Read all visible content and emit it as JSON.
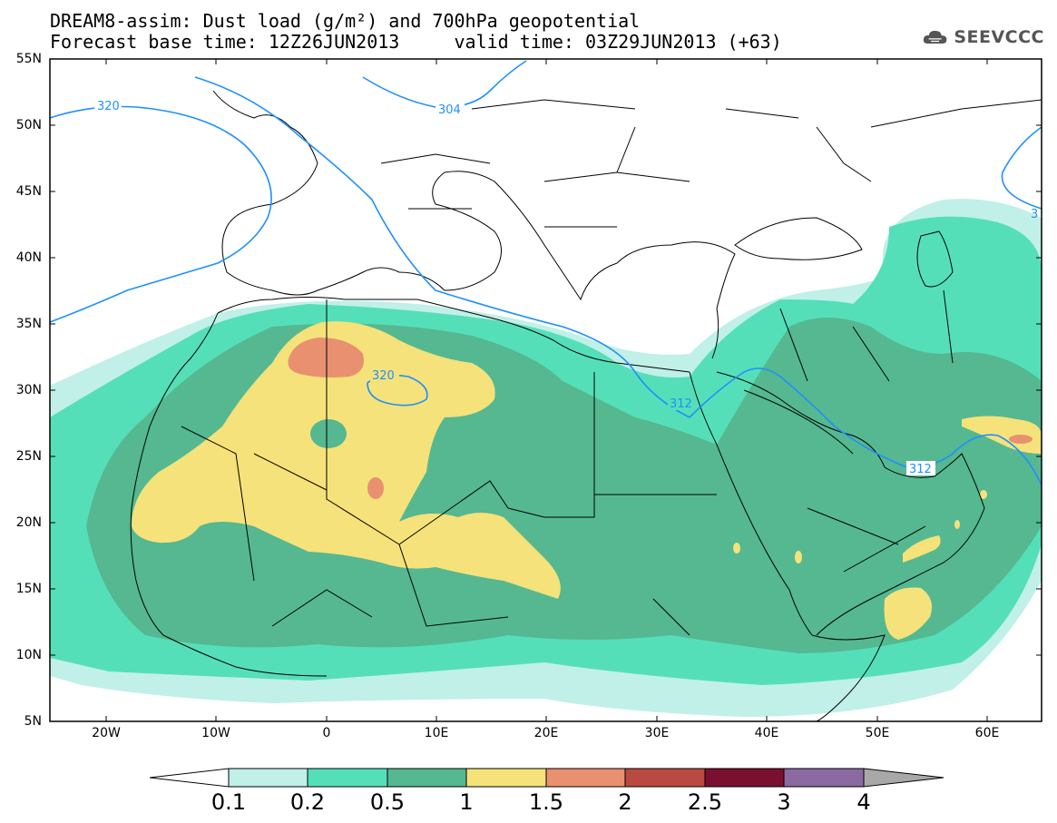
{
  "title_line1": "DREAM8-assim: Dust load (g/m²) and 700hPa geopotential",
  "title_line2": "Forecast base time: 12Z26JUN2013     valid time: 03Z29JUN2013 (+63)",
  "logo_text": "SEEVCCC",
  "lat_labels": [
    "55N",
    "50N",
    "45N",
    "40N",
    "35N",
    "30N",
    "25N",
    "20N",
    "15N",
    "10N",
    "5N"
  ],
  "lon_labels": [
    "20W",
    "10W",
    "0",
    "10E",
    "20E",
    "30E",
    "40E",
    "50E",
    "60E"
  ],
  "contour_labels": [
    "320",
    "304",
    "320",
    "312",
    "312",
    "3"
  ],
  "colorbar": {
    "labels": [
      "0.1",
      "0.2",
      "0.5",
      "1",
      "1.5",
      "2",
      "2.5",
      "3",
      "4"
    ],
    "colors": [
      "#c0f0e8",
      "#55dfb8",
      "#55b890",
      "#f5e27a",
      "#e89070",
      "#b84a40",
      "#7a1030",
      "#8a6aa0"
    ]
  },
  "legend_colors": {
    "light_cyan": "#c0f0e8",
    "cyan_green": "#55dfb8",
    "green": "#55b890",
    "yellow": "#f5e27a",
    "salmon": "#e89070",
    "contour": "#1e90ff"
  }
}
